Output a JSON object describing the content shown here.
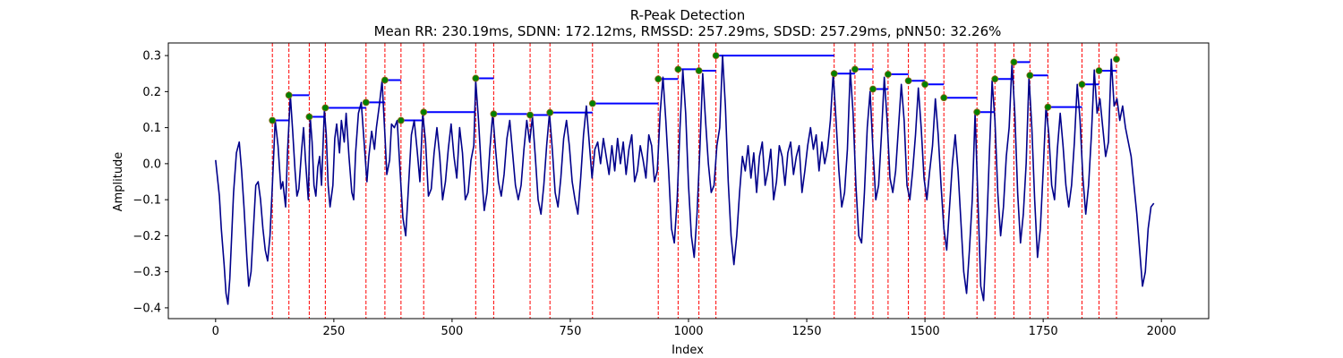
{
  "chart_data": {
    "type": "line",
    "title": "R-Peak Detection",
    "subtitle": "Mean RR: 230.19ms, SDNN: 172.12ms, RMSSD: 257.29ms, SDSD: 257.29ms, pNN50: 32.26%",
    "xlabel": "Index",
    "ylabel": "Amplitude",
    "xlim": [
      -100,
      2100
    ],
    "ylim": [
      -0.43,
      0.335
    ],
    "grid": false,
    "x_ticks": [
      0,
      250,
      500,
      750,
      1000,
      1250,
      1500,
      1750,
      2000
    ],
    "y_ticks": [
      0.3,
      0.2,
      0.1,
      0.0,
      -0.1,
      -0.2,
      -0.3,
      -0.4
    ],
    "x_tick_labels": [
      "0",
      "250",
      "500",
      "750",
      "1000",
      "1250",
      "1500",
      "1750",
      "2000"
    ],
    "y_tick_labels": [
      "0.3",
      "0.2",
      "0.1",
      "0.0",
      "−0.1",
      "−0.2",
      "−0.3",
      "−0.4"
    ],
    "colors": {
      "signal": "#00008b",
      "peak_line": "#ff0000",
      "peak_marker": "#008000",
      "marker_edge": "#8b6914",
      "rr_bar": "#0000ff"
    },
    "signal_x": [
      0,
      8,
      12,
      18,
      22,
      26,
      30,
      34,
      38,
      44,
      50,
      55,
      60,
      66,
      70,
      75,
      80,
      85,
      90,
      95,
      100,
      105,
      110,
      115,
      120,
      126,
      132,
      138,
      142,
      148,
      152,
      158,
      163,
      168,
      172,
      176,
      182,
      186,
      190,
      196,
      200,
      204,
      208,
      212,
      216,
      220,
      224,
      230,
      234,
      238,
      242,
      248,
      252,
      256,
      262,
      266,
      272,
      276,
      282,
      288,
      292,
      296,
      302,
      308,
      314,
      320,
      324,
      330,
      336,
      340,
      346,
      352,
      358,
      362,
      368,
      372,
      378,
      384,
      390,
      396,
      402,
      408,
      414,
      420,
      426,
      432,
      438,
      444,
      450,
      456,
      462,
      468,
      474,
      480,
      486,
      492,
      498,
      504,
      510,
      516,
      522,
      528,
      534,
      540,
      546,
      550,
      556,
      562,
      568,
      574,
      580,
      586,
      592,
      598,
      604,
      610,
      616,
      622,
      628,
      634,
      640,
      646,
      652,
      658,
      664,
      670,
      676,
      682,
      688,
      694,
      700,
      706,
      712,
      718,
      724,
      730,
      736,
      742,
      748,
      754,
      760,
      766,
      772,
      778,
      784,
      790,
      796,
      802,
      808,
      814,
      820,
      826,
      832,
      838,
      844,
      850,
      856,
      862,
      868,
      874,
      880,
      886,
      892,
      898,
      904,
      910,
      916,
      922,
      928,
      934,
      940,
      946,
      952,
      958,
      964,
      970,
      976,
      982,
      988,
      994,
      1000,
      1006,
      1012,
      1018,
      1024,
      1030,
      1036,
      1042,
      1048,
      1054,
      1060,
      1066,
      1072,
      1078,
      1084,
      1090,
      1096,
      1102,
      1108,
      1114,
      1120,
      1126,
      1132,
      1138,
      1144,
      1150,
      1156,
      1162,
      1168,
      1174,
      1180,
      1186,
      1192,
      1198,
      1204,
      1210,
      1216,
      1222,
      1228,
      1234,
      1240,
      1246,
      1252,
      1258,
      1264,
      1270,
      1276,
      1282,
      1288,
      1294,
      1300,
      1306,
      1312,
      1318,
      1324,
      1330,
      1336,
      1342,
      1348,
      1354,
      1360,
      1366,
      1372,
      1378,
      1384,
      1390,
      1396,
      1402,
      1408,
      1414,
      1420,
      1426,
      1432,
      1438,
      1444,
      1450,
      1456,
      1462,
      1468,
      1474,
      1480,
      1486,
      1492,
      1498,
      1504,
      1510,
      1516,
      1522,
      1528,
      1534,
      1540,
      1546,
      1552,
      1558,
      1564,
      1570,
      1576,
      1582,
      1588,
      1594,
      1600,
      1606,
      1612,
      1618,
      1624,
      1630,
      1636,
      1642,
      1648,
      1654,
      1660,
      1666,
      1672,
      1678,
      1684,
      1690,
      1696,
      1702,
      1708,
      1714,
      1720,
      1726,
      1732,
      1738,
      1744,
      1750,
      1756,
      1762,
      1768,
      1774,
      1780,
      1786,
      1792,
      1798,
      1804,
      1810,
      1816,
      1822,
      1828,
      1834,
      1840,
      1846,
      1852,
      1858,
      1864,
      1870,
      1876,
      1882,
      1888,
      1894,
      1900,
      1906,
      1912,
      1918,
      1924,
      1930,
      1936,
      1942,
      1948,
      1954,
      1960,
      1966,
      1972,
      1978,
      1984,
      1990,
      1996,
      2000
    ],
    "signal_y": [
      0.01,
      -0.09,
      -0.18,
      -0.28,
      -0.36,
      -0.39,
      -0.32,
      -0.2,
      -0.08,
      0.03,
      0.06,
      -0.02,
      -0.12,
      -0.26,
      -0.34,
      -0.3,
      -0.18,
      -0.06,
      -0.05,
      -0.1,
      -0.18,
      -0.24,
      -0.27,
      -0.2,
      -0.06,
      0.12,
      0.05,
      -0.07,
      -0.05,
      -0.12,
      0.03,
      0.19,
      0.09,
      -0.02,
      -0.09,
      -0.07,
      0.04,
      0.1,
      0.01,
      -0.1,
      0.13,
      0.06,
      -0.06,
      -0.09,
      -0.01,
      0.02,
      -0.06,
      0.15,
      0.08,
      -0.06,
      -0.12,
      -0.06,
      0.07,
      0.11,
      0.03,
      0.12,
      0.06,
      0.14,
      0.02,
      -0.08,
      -0.1,
      0.03,
      0.14,
      0.17,
      0.06,
      -0.05,
      0.02,
      0.09,
      0.04,
      0.1,
      0.16,
      0.23,
      0.08,
      -0.03,
      0.01,
      0.11,
      0.1,
      0.12,
      -0.02,
      -0.15,
      -0.2,
      -0.06,
      0.08,
      0.12,
      0.04,
      -0.05,
      0.14,
      0.06,
      -0.09,
      -0.07,
      0.03,
      0.1,
      0.02,
      -0.1,
      -0.05,
      0.04,
      0.11,
      0.02,
      -0.04,
      0.1,
      0.03,
      -0.1,
      -0.08,
      0.01,
      0.05,
      0.23,
      0.12,
      -0.02,
      -0.13,
      -0.08,
      0.04,
      0.14,
      0.04,
      -0.05,
      -0.09,
      -0.03,
      0.07,
      0.12,
      0.03,
      -0.06,
      -0.1,
      -0.06,
      0.04,
      0.12,
      0.06,
      0.13,
      0.02,
      -0.1,
      -0.14,
      -0.06,
      0.05,
      0.14,
      0.04,
      -0.08,
      -0.12,
      -0.04,
      0.07,
      0.12,
      0.05,
      -0.05,
      -0.1,
      -0.14,
      -0.04,
      0.08,
      0.16,
      0.06,
      -0.04,
      0.04,
      0.06,
      0.0,
      0.07,
      0.02,
      -0.03,
      0.05,
      -0.02,
      0.07,
      0.0,
      0.06,
      -0.03,
      0.04,
      0.08,
      -0.05,
      -0.02,
      0.05,
      0.01,
      -0.04,
      0.08,
      0.05,
      -0.05,
      -0.02,
      0.14,
      0.24,
      0.12,
      -0.02,
      -0.18,
      -0.22,
      -0.1,
      0.1,
      0.26,
      0.14,
      -0.06,
      -0.2,
      -0.26,
      -0.14,
      0.04,
      0.25,
      0.12,
      0.0,
      -0.08,
      -0.06,
      0.05,
      0.1,
      0.3,
      0.16,
      -0.05,
      -0.2,
      -0.28,
      -0.2,
      -0.08,
      0.02,
      -0.02,
      0.05,
      -0.04,
      0.03,
      -0.08,
      0.02,
      0.06,
      -0.06,
      -0.02,
      0.04,
      -0.1,
      -0.05,
      0.05,
      0.02,
      -0.06,
      0.03,
      0.06,
      -0.03,
      0.02,
      0.05,
      -0.08,
      -0.02,
      0.05,
      0.1,
      0.04,
      0.08,
      -0.02,
      0.06,
      0.0,
      0.04,
      0.12,
      0.25,
      0.12,
      -0.02,
      -0.12,
      -0.08,
      0.04,
      0.26,
      0.14,
      -0.06,
      -0.2,
      -0.22,
      -0.08,
      0.1,
      0.2,
      0.04,
      -0.1,
      -0.06,
      0.08,
      0.24,
      0.12,
      -0.04,
      -0.08,
      -0.02,
      0.1,
      0.22,
      0.12,
      -0.06,
      -0.1,
      -0.02,
      0.08,
      0.21,
      0.1,
      -0.04,
      -0.1,
      -0.02,
      0.05,
      0.18,
      0.08,
      -0.06,
      -0.18,
      -0.24,
      -0.12,
      0.0,
      0.08,
      -0.02,
      -0.16,
      -0.3,
      -0.36,
      -0.24,
      -0.1,
      0.14,
      -0.1,
      -0.34,
      -0.38,
      -0.2,
      0.02,
      0.23,
      0.12,
      -0.08,
      -0.2,
      -0.12,
      0.02,
      0.1,
      0.28,
      0.14,
      -0.08,
      -0.22,
      -0.14,
      0.0,
      0.24,
      0.1,
      -0.1,
      -0.26,
      -0.18,
      -0.02,
      0.16,
      0.08,
      -0.06,
      -0.1,
      0.04,
      0.14,
      0.05,
      -0.06,
      -0.12,
      -0.06,
      0.06,
      0.22,
      0.12,
      -0.04,
      -0.14,
      -0.06,
      0.08,
      0.26,
      0.14,
      0.18,
      0.1,
      0.02,
      0.06,
      0.29,
      0.16,
      0.18,
      0.12,
      0.16,
      0.1,
      0.06,
      0.02,
      -0.06,
      -0.14,
      -0.24,
      -0.34,
      -0.3,
      -0.18,
      -0.12,
      -0.11
    ],
    "peaks": [
      {
        "x": 120,
        "y": 0.12,
        "rr_to": 155
      },
      {
        "x": 155,
        "y": 0.19,
        "rr_to": 198
      },
      {
        "x": 198,
        "y": 0.13,
        "rr_to": 232
      },
      {
        "x": 232,
        "y": 0.155,
        "rr_to": 318
      },
      {
        "x": 318,
        "y": 0.17,
        "rr_to": 358
      },
      {
        "x": 358,
        "y": 0.232,
        "rr_to": 392
      },
      {
        "x": 392,
        "y": 0.12,
        "rr_to": 440
      },
      {
        "x": 440,
        "y": 0.143,
        "rr_to": 550
      },
      {
        "x": 550,
        "y": 0.237,
        "rr_to": 588
      },
      {
        "x": 588,
        "y": 0.138,
        "rr_to": 665
      },
      {
        "x": 665,
        "y": 0.135,
        "rr_to": 707
      },
      {
        "x": 707,
        "y": 0.142,
        "rr_to": 797
      },
      {
        "x": 797,
        "y": 0.167,
        "rr_to": 936
      },
      {
        "x": 936,
        "y": 0.235,
        "rr_to": 978
      },
      {
        "x": 978,
        "y": 0.262,
        "rr_to": 1022
      },
      {
        "x": 1022,
        "y": 0.258,
        "rr_to": 1058
      },
      {
        "x": 1058,
        "y": 0.3,
        "rr_to": 1308
      },
      {
        "x": 1308,
        "y": 0.25,
        "rr_to": 1352
      },
      {
        "x": 1352,
        "y": 0.262,
        "rr_to": 1390
      },
      {
        "x": 1390,
        "y": 0.207,
        "rr_to": 1422
      },
      {
        "x": 1422,
        "y": 0.248,
        "rr_to": 1465
      },
      {
        "x": 1465,
        "y": 0.23,
        "rr_to": 1500
      },
      {
        "x": 1500,
        "y": 0.22,
        "rr_to": 1540
      },
      {
        "x": 1540,
        "y": 0.183,
        "rr_to": 1610
      },
      {
        "x": 1610,
        "y": 0.143,
        "rr_to": 1648
      },
      {
        "x": 1648,
        "y": 0.235,
        "rr_to": 1688
      },
      {
        "x": 1688,
        "y": 0.282,
        "rr_to": 1722
      },
      {
        "x": 1722,
        "y": 0.245,
        "rr_to": 1760
      },
      {
        "x": 1760,
        "y": 0.157,
        "rr_to": 1832
      },
      {
        "x": 1832,
        "y": 0.22,
        "rr_to": 1868
      },
      {
        "x": 1868,
        "y": 0.258,
        "rr_to": 1905
      },
      {
        "x": 1905,
        "y": 0.29,
        "rr_to": null
      }
    ]
  }
}
